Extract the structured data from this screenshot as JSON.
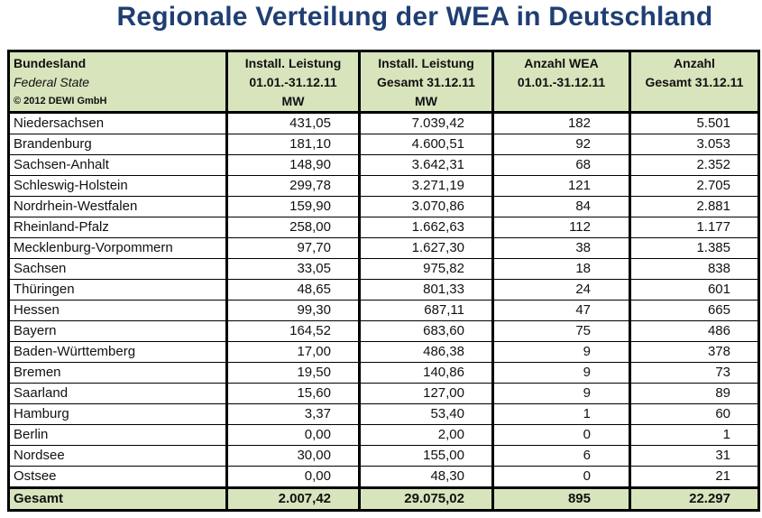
{
  "title": "Regionale Verteilung der WEA in Deutschland",
  "table": {
    "header": {
      "col0": [
        "Bundesland",
        "Federal State",
        "© 2012 DEWI GmbH"
      ],
      "col1": [
        "Install. Leistung",
        "01.01.-31.12.11",
        "MW"
      ],
      "col2": [
        "Install. Leistung",
        "Gesamt 31.12.11",
        "MW"
      ],
      "col3": [
        "Anzahl WEA",
        "01.01.-31.12.11"
      ],
      "col4": [
        "Anzahl",
        "Gesamt 31.12.11"
      ]
    },
    "rows": [
      [
        "Niedersachsen",
        "431,05",
        "7.039,42",
        "182",
        "5.501"
      ],
      [
        "Brandenburg",
        "181,10",
        "4.600,51",
        "92",
        "3.053"
      ],
      [
        "Sachsen-Anhalt",
        "148,90",
        "3.642,31",
        "68",
        "2.352"
      ],
      [
        "Schleswig-Holstein",
        "299,78",
        "3.271,19",
        "121",
        "2.705"
      ],
      [
        "Nordrhein-Westfalen",
        "159,90",
        "3.070,86",
        "84",
        "2.881"
      ],
      [
        "Rheinland-Pfalz",
        "258,00",
        "1.662,63",
        "112",
        "1.177"
      ],
      [
        "Mecklenburg-Vorpommern",
        "97,70",
        "1.627,30",
        "38",
        "1.385"
      ],
      [
        "Sachsen",
        "33,05",
        "975,82",
        "18",
        "838"
      ],
      [
        "Thüringen",
        "48,65",
        "801,33",
        "24",
        "601"
      ],
      [
        "Hessen",
        "99,30",
        "687,11",
        "47",
        "665"
      ],
      [
        "Bayern",
        "164,52",
        "683,60",
        "75",
        "486"
      ],
      [
        "Baden-Württemberg",
        "17,00",
        "486,38",
        "9",
        "378"
      ],
      [
        "Bremen",
        "19,50",
        "140,86",
        "9",
        "73"
      ],
      [
        "Saarland",
        "15,60",
        "127,00",
        "9",
        "89"
      ],
      [
        "Hamburg",
        "3,37",
        "53,40",
        "1",
        "60"
      ],
      [
        "Berlin",
        "0,00",
        "2,00",
        "0",
        "1"
      ],
      [
        "Nordsee",
        "30,00",
        "155,00",
        "6",
        "31"
      ],
      [
        "Ostsee",
        "0,00",
        "48,30",
        "0",
        "21"
      ]
    ],
    "total": [
      "Gesamt",
      "2.007,42",
      "29.075,02",
      "895",
      "22.297"
    ]
  },
  "colors": {
    "title": "#1f3f73",
    "header_bg": "#d8e4bc"
  }
}
